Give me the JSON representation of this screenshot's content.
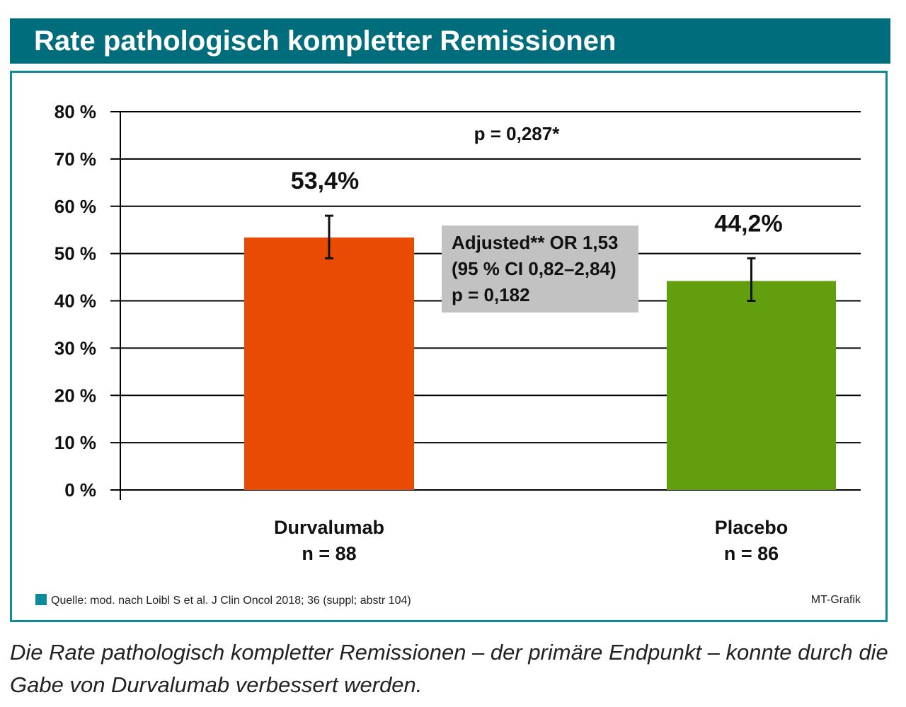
{
  "header": {
    "title": "Rate pathologisch kompletter Remissionen"
  },
  "chart_data": {
    "type": "bar",
    "title": "Rate pathologisch kompletter Remissionen",
    "categories": [
      "Durvalumab",
      "Placebo"
    ],
    "category_subtitles": [
      "n = 88",
      "n = 86"
    ],
    "values": [
      53.4,
      44.2
    ],
    "error_low": [
      49,
      40
    ],
    "error_high": [
      58,
      49
    ],
    "data_labels": [
      "53,4%",
      "44,2%"
    ],
    "colors": [
      "#e94b05",
      "#639e0e"
    ],
    "ylim": [
      0,
      80
    ],
    "yticks": [
      0,
      10,
      20,
      30,
      40,
      50,
      60,
      70,
      80
    ],
    "ytick_labels": [
      "0 %",
      "10 %",
      "20 %",
      "30 %",
      "40 %",
      "50 %",
      "60 %",
      "70 %",
      "80 %"
    ],
    "grid": true,
    "annotations": {
      "p_value": "p = 0,287*",
      "odds_box": [
        "Adjusted** OR 1,53",
        "(95 % CI 0,82–2,84)",
        "p = 0,182"
      ],
      "odds_box_color": "#c2c2c2"
    }
  },
  "footer": {
    "source": "Quelle: mod. nach Loibl S et al. J Clin Oncol 2018; 36 (suppl; abstr 104)",
    "credit": "MT-Grafik"
  },
  "caption": "Die Rate pathologisch kompletter Remissionen – der primäre Endpunkt – konnte durch die Gabe von Durvalumab verbessert werden."
}
